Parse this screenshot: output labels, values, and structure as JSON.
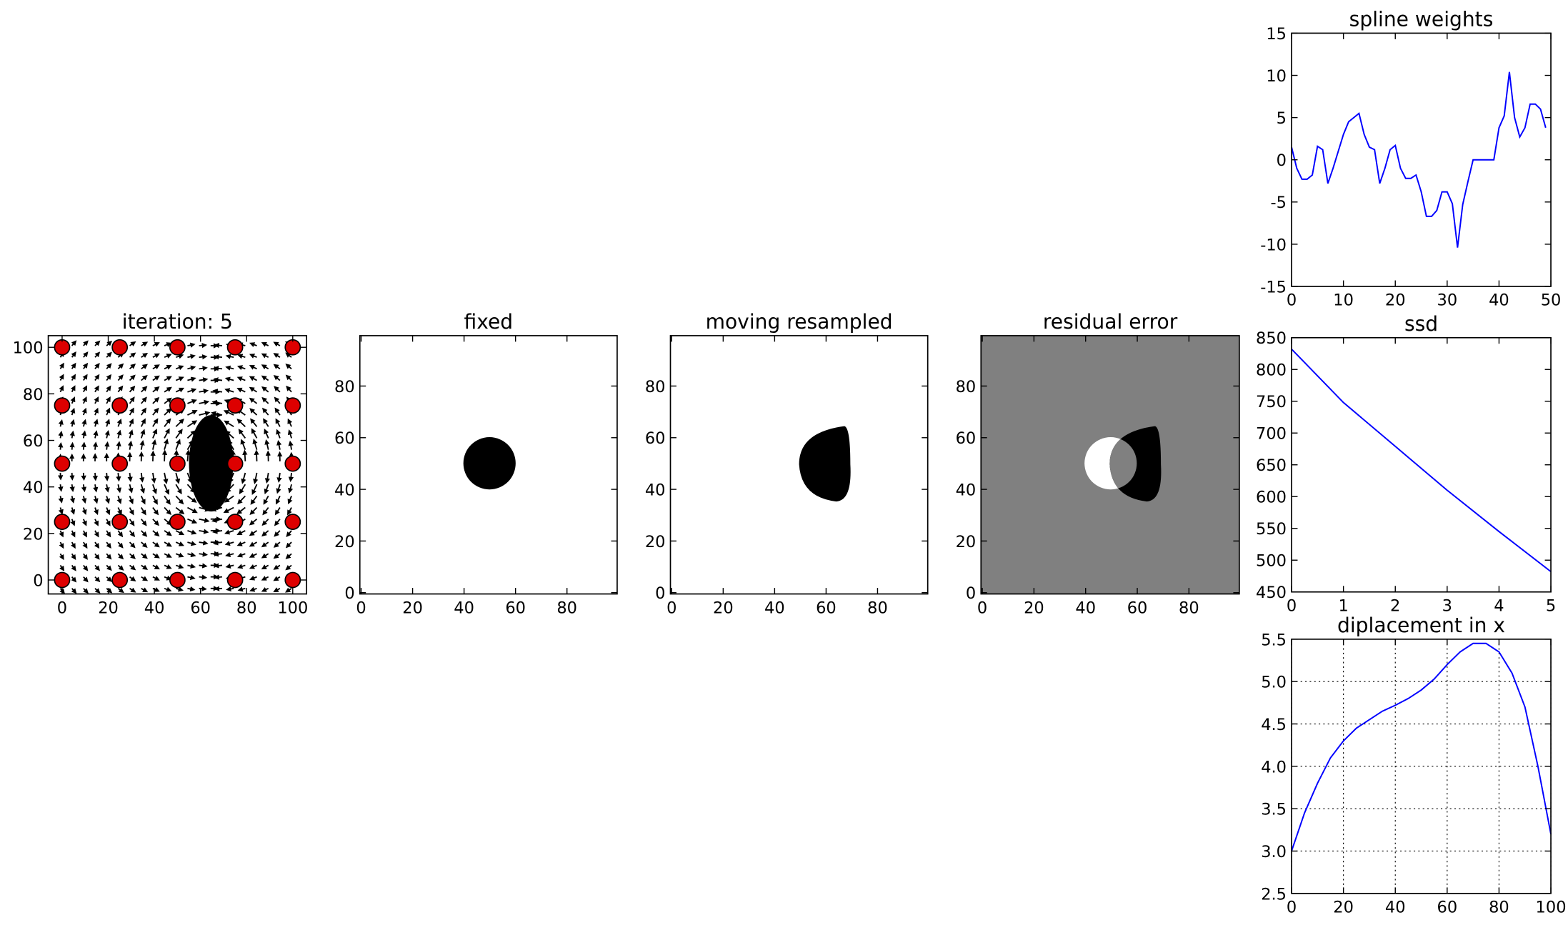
{
  "chart_data": [
    {
      "type": "scatter",
      "title": "iteration: 5",
      "x": [
        0,
        25,
        50,
        75,
        100,
        0,
        25,
        50,
        75,
        100,
        0,
        25,
        50,
        75,
        100,
        0,
        25,
        50,
        75,
        100,
        0,
        25,
        50,
        75,
        100
      ],
      "y": [
        0,
        0,
        0,
        0,
        0,
        25,
        25,
        25,
        25,
        25,
        50,
        50,
        50,
        50,
        50,
        75,
        75,
        75,
        75,
        75,
        100,
        100,
        100,
        100,
        100
      ],
      "color": "#dd0000",
      "xlim": [
        -6,
        106
      ],
      "ylim": [
        -6,
        105
      ],
      "xticks": [
        0,
        20,
        40,
        60,
        80,
        100
      ],
      "yticks": [
        0,
        20,
        40,
        60,
        80,
        100
      ]
    },
    {
      "type": "image",
      "title": "fixed",
      "xlim": [
        -0.5,
        99.5
      ],
      "ylim": [
        -0.5,
        99.5
      ],
      "xticks": [
        0,
        20,
        40,
        60,
        80
      ],
      "yticks": [
        0,
        20,
        40,
        60,
        80
      ]
    },
    {
      "type": "image",
      "title": "moving resampled",
      "xlim": [
        -0.5,
        99.5
      ],
      "ylim": [
        -0.5,
        99.5
      ],
      "xticks": [
        0,
        20,
        40,
        60,
        80
      ],
      "yticks": [
        0,
        20,
        40,
        60,
        80
      ]
    },
    {
      "type": "image",
      "title": "residual error",
      "xlim": [
        -0.5,
        99.5
      ],
      "ylim": [
        -0.5,
        99.5
      ],
      "xticks": [
        0,
        20,
        40,
        60,
        80
      ],
      "yticks": [
        0,
        20,
        40,
        60,
        80
      ]
    },
    {
      "type": "line",
      "title": "spline weights",
      "x": [
        0,
        1,
        2,
        3,
        4,
        5,
        6,
        7,
        8,
        9,
        10,
        11,
        12,
        13,
        14,
        15,
        16,
        17,
        18,
        19,
        20,
        21,
        22,
        23,
        24,
        25,
        26,
        27,
        28,
        29,
        30,
        31,
        32,
        33,
        34,
        35,
        36,
        37,
        38,
        39,
        40,
        41,
        42,
        43,
        44,
        45,
        46,
        47,
        48,
        49
      ],
      "series": [
        {
          "color": "#0000ff",
          "values": [
            1.5,
            -1,
            -2.3,
            -2.3,
            -1.8,
            1.6,
            1.2,
            -2.8,
            -1,
            1,
            3,
            4.5,
            5,
            5.5,
            3,
            1.5,
            1.2,
            -2.8,
            -1,
            1.2,
            1.7,
            -1,
            -2.2,
            -2.2,
            -1.8,
            -3.8,
            -6.7,
            -6.7,
            -6,
            -3.8,
            -3.8,
            -5.2,
            -10.4,
            -5.3,
            -2.6,
            0,
            0,
            0,
            0,
            0,
            3.8,
            5.2,
            10.4,
            5,
            2.7,
            3.8,
            6.6,
            6.6,
            6,
            3.8
          ]
        }
      ],
      "xlim": [
        0,
        50
      ],
      "ylim": [
        -15,
        15
      ],
      "xticks": [
        0,
        10,
        20,
        30,
        40,
        50
      ],
      "yticks": [
        -15,
        -10,
        -5,
        0,
        5,
        10,
        15
      ]
    },
    {
      "type": "line",
      "title": "ssd",
      "x": [
        0,
        1,
        2,
        3,
        4,
        5
      ],
      "series": [
        {
          "color": "#0000ff",
          "values": [
            832,
            748,
            679,
            610,
            545,
            482
          ]
        }
      ],
      "xlim": [
        0,
        5
      ],
      "ylim": [
        450,
        850
      ],
      "xticks": [
        0,
        1,
        2,
        3,
        4,
        5
      ],
      "yticks": [
        450,
        500,
        550,
        600,
        650,
        700,
        750,
        800,
        850
      ]
    },
    {
      "type": "line",
      "title": "diplacement in x",
      "grid": true,
      "x": [
        0,
        5,
        10,
        15,
        20,
        25,
        30,
        35,
        40,
        45,
        50,
        55,
        60,
        65,
        70,
        75,
        80,
        85,
        90,
        95,
        100
      ],
      "series": [
        {
          "color": "#0000ff",
          "values": [
            3.0,
            3.45,
            3.8,
            4.1,
            4.3,
            4.45,
            4.55,
            4.65,
            4.72,
            4.8,
            4.9,
            5.03,
            5.2,
            5.35,
            5.45,
            5.45,
            5.35,
            5.1,
            4.7,
            4.0,
            3.2
          ]
        }
      ],
      "xlim": [
        0,
        100
      ],
      "ylim": [
        2.5,
        5.5
      ],
      "xticks": [
        0,
        20,
        40,
        60,
        80,
        100
      ],
      "yticks": [
        2.5,
        {
          "value": 3,
          "label": "3.0"
        },
        3.5,
        {
          "value": 4,
          "label": "4.0"
        },
        4.5,
        {
          "value": 5,
          "label": "5.0"
        },
        5.5
      ]
    }
  ]
}
